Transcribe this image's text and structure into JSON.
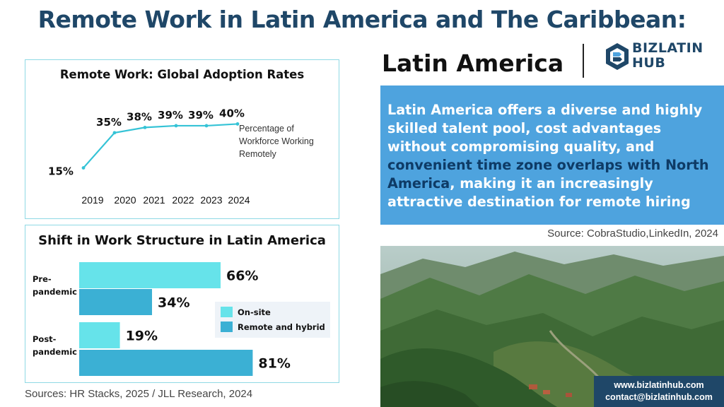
{
  "page": {
    "title": "Remote Work in Latin America and The Caribbean:",
    "sources_left": "Sources: HR Stacks, 2025 /  JLL Research, 2024"
  },
  "chart_data": [
    {
      "type": "line",
      "title": "Remote Work: Global Adoption Rates",
      "x": [
        "2019",
        "2020",
        "2021",
        "2022",
        "2023",
        "2024"
      ],
      "values": [
        15,
        35,
        38,
        39,
        39,
        40
      ],
      "value_labels": [
        "15%",
        "35%",
        "38%",
        "39%",
        "39%",
        "40%"
      ],
      "annotation": [
        "Percentage of",
        "Workforce Working",
        "Remotely"
      ],
      "ylim": [
        10,
        45
      ],
      "grid": false,
      "color": "#35c3d6"
    },
    {
      "type": "bar",
      "orientation": "horizontal",
      "title": "Shift in Work Structure in Latin America",
      "categories": [
        [
          "Pre-",
          "pandemic"
        ],
        [
          "Post-",
          "pandemic"
        ]
      ],
      "series": [
        {
          "name": "On-site",
          "values": [
            66,
            19
          ],
          "labels": [
            "66%",
            "19%"
          ],
          "color": "#66e3ea"
        },
        {
          "name": "Remote and hybrid",
          "values": [
            34,
            81
          ],
          "labels": [
            "34%",
            "81%"
          ],
          "color": "#3bb0d4"
        }
      ],
      "xlim": [
        0,
        100
      ],
      "legend": "center-right",
      "grid": false
    }
  ],
  "right": {
    "region_title": "Latin America",
    "logo": {
      "line1": "BIZLATIN",
      "line2": "HUB",
      "icon": "bizlatin-logo-icon",
      "color": "#1f4768"
    },
    "description": {
      "before": "Latin America offers a diverse and highly skilled talent pool, cost advantages without compromising quality, and ",
      "highlight": "convenient time zone overlaps with North America",
      "after": ", making it an increasingly attractive destination for remote hiring"
    },
    "source": "Source: CobraStudio,LinkedIn, 2024",
    "contact": {
      "website": "www.bizlatinhub.com",
      "email": "contact@bizlatinhub.com"
    }
  },
  "colors": {
    "title": "#1f4768",
    "panel_border": "#8fd9e5",
    "blue_box": "#4ea3de",
    "highlight_text": "#0e3b66"
  }
}
